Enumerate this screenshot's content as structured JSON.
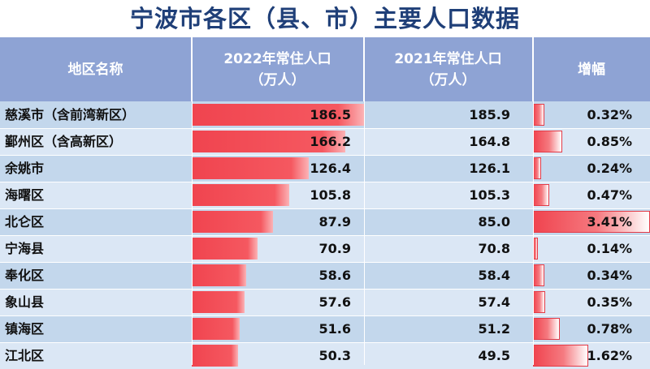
{
  "title": "宁波市各区（县、市）主要人口数据",
  "headers": {
    "name": "地区名称",
    "pop2022_line1": "2022年常住人口",
    "pop2022_line2": "（万人）",
    "pop2021_line1": "2021年常住人口",
    "pop2021_line2": "（万人）",
    "growth": "增幅"
  },
  "colors": {
    "title": "#1f3f78",
    "header_bg": "#8ea3d4",
    "row_light": "#dbe7f5",
    "row_dark": "#c3d7ec",
    "bar_red": "#f0444f"
  },
  "chart_data": {
    "type": "table",
    "title": "宁波市各区（县、市）主要人口数据",
    "columns": [
      "地区名称",
      "2022年常住人口（万人）",
      "2021年常住人口（万人）",
      "增幅"
    ],
    "rows": [
      {
        "name": "慈溪市（含前湾新区）",
        "pop2022": "186.5",
        "pop2021": "185.9",
        "growth": "0.32%"
      },
      {
        "name": "鄞州区（含高新区）",
        "pop2022": "166.2",
        "pop2021": "164.8",
        "growth": "0.85%"
      },
      {
        "name": "余姚市",
        "pop2022": "126.4",
        "pop2021": "126.1",
        "growth": "0.24%"
      },
      {
        "name": "海曙区",
        "pop2022": "105.8",
        "pop2021": "105.3",
        "growth": "0.47%"
      },
      {
        "name": "北仑区",
        "pop2022": "87.9",
        "pop2021": "85.0",
        "growth": "3.41%"
      },
      {
        "name": "宁海县",
        "pop2022": "70.9",
        "pop2021": "70.8",
        "growth": "0.14%"
      },
      {
        "name": "奉化区",
        "pop2022": "58.6",
        "pop2021": "58.4",
        "growth": "0.34%"
      },
      {
        "name": "象山县",
        "pop2022": "57.6",
        "pop2021": "57.4",
        "growth": "0.35%"
      },
      {
        "name": "镇海区",
        "pop2022": "51.6",
        "pop2021": "51.2",
        "growth": "0.78%"
      },
      {
        "name": "江北区",
        "pop2022": "50.3",
        "pop2021": "49.5",
        "growth": "1.62%"
      }
    ]
  }
}
